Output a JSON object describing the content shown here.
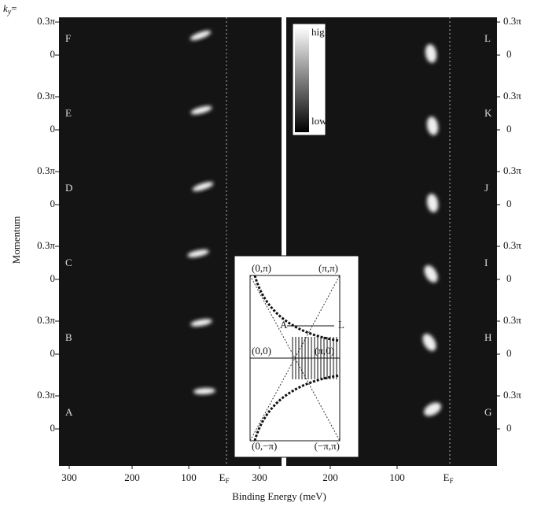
{
  "header": {
    "k": "k",
    "sub": "y",
    "eq": "="
  },
  "left_panels": [
    "F",
    "E",
    "D",
    "C",
    "B",
    "A"
  ],
  "right_panels": [
    "L",
    "K",
    "J",
    "I",
    "H",
    "G"
  ],
  "y_ticks": [
    "0.3π",
    "0"
  ],
  "x_ticks": [
    "300",
    "200",
    "100"
  ],
  "ef": {
    "main": "E",
    "sub": "F"
  },
  "y_axis_label": "Momentum",
  "x_axis_label": "Binding Energy (meV)",
  "colorbar": {
    "high": "high",
    "low": "low"
  },
  "inset": {
    "corners": [
      "(0,π)",
      "(π,π)",
      "(0,0)",
      "(π,0)",
      "(0,−π)",
      "(−π,π)"
    ],
    "A": "A",
    "L": "L"
  }
}
